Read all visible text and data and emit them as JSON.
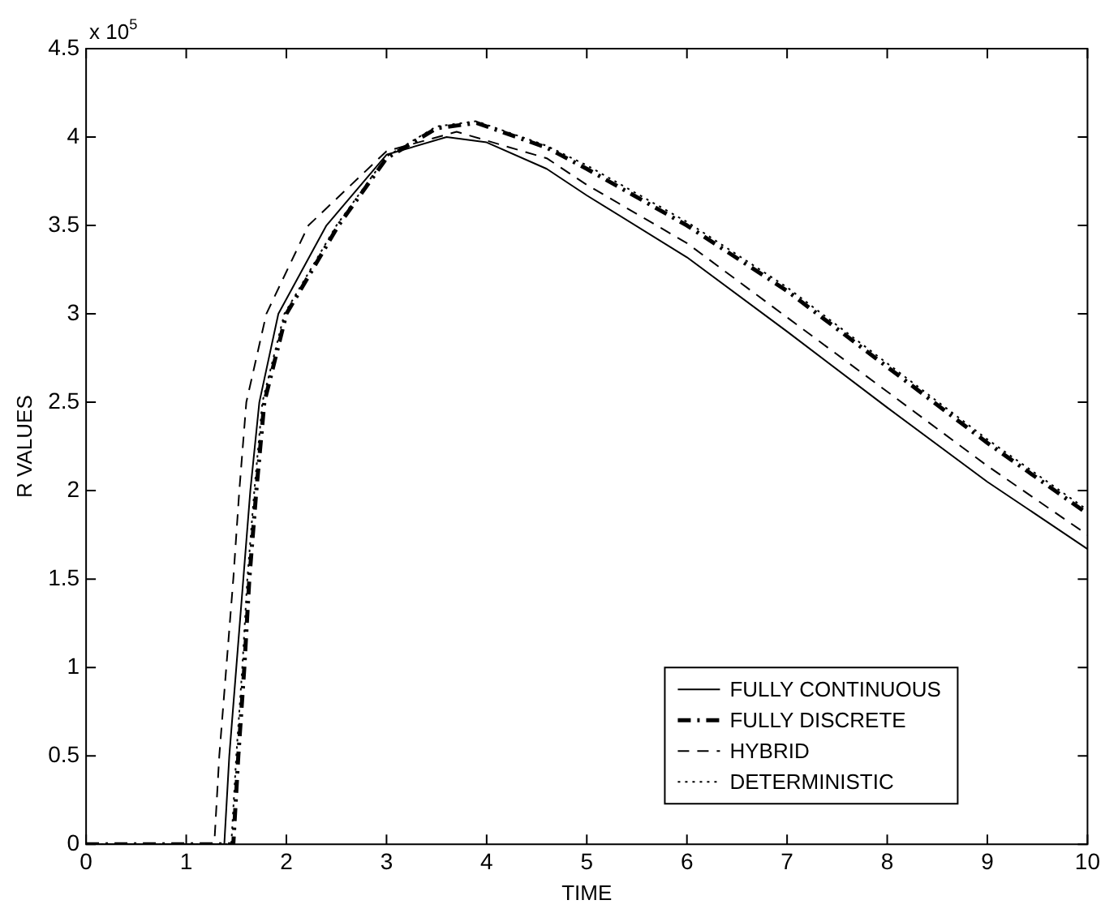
{
  "chart_data": {
    "type": "line",
    "xlabel": "TIME",
    "ylabel": "R VALUES",
    "annotations": [
      "x 10$^{5}$"
    ],
    "xlim": [
      0,
      10
    ],
    "xticks": [
      0,
      1,
      2,
      3,
      4,
      5,
      6,
      7,
      8,
      9,
      10
    ],
    "ylim": [
      0,
      4.5
    ],
    "yticks": [
      0,
      0.5,
      1,
      1.5,
      2,
      2.5,
      3,
      3.5,
      4,
      4.5
    ],
    "legend": "bottom right",
    "marker": "none",
    "series": [
      {
        "name": "FULLY CONTINUOUS",
        "color": "#000000",
        "line_style": "solid",
        "x": [
          0,
          1.38,
          1.43,
          1.5,
          1.57,
          1.64,
          1.73,
          1.92,
          2.4,
          3,
          3.6,
          4,
          4.6,
          5,
          6,
          7,
          8,
          9,
          10
        ],
        "values": [
          0,
          0,
          0.5,
          1,
          1.5,
          2,
          2.5,
          3,
          3.5,
          3.9,
          4,
          3.97,
          3.82,
          3.67,
          3.32,
          2.9,
          2.47,
          2.05,
          1.67
        ]
      },
      {
        "name": "FULLY DISCRETE",
        "color": "#000000",
        "line_style": "dashdot",
        "x": [
          0,
          1.47,
          1.52,
          1.58,
          1.63,
          1.7,
          1.78,
          2,
          2.52,
          3,
          3.5,
          3.9,
          4.6,
          5,
          6,
          7,
          8,
          9,
          10
        ],
        "values": [
          0,
          0,
          0.5,
          1,
          1.5,
          2,
          2.5,
          3,
          3.5,
          3.88,
          4.05,
          4.08,
          3.94,
          3.82,
          3.5,
          3.13,
          2.7,
          2.27,
          1.87
        ]
      },
      {
        "name": "HYBRID",
        "color": "#000000",
        "line_style": "dashed",
        "x": [
          0,
          1.28,
          1.33,
          1.4,
          1.47,
          1.53,
          1.6,
          1.8,
          2.22,
          3,
          3.7,
          4.6,
          5,
          6,
          7,
          8,
          9,
          10
        ],
        "values": [
          0,
          0,
          0.5,
          1,
          1.5,
          2,
          2.5,
          3,
          3.5,
          3.92,
          4.03,
          3.88,
          3.73,
          3.4,
          2.98,
          2.56,
          2.14,
          1.75
        ]
      },
      {
        "name": "DETERMINISTIC",
        "color": "#000000",
        "line_style": "dotted",
        "x": [
          0,
          1.45,
          1.5,
          1.56,
          1.61,
          1.68,
          1.76,
          1.98,
          2.5,
          3,
          3.5,
          3.9,
          4.6,
          5,
          6,
          7,
          8,
          9,
          10
        ],
        "values": [
          0,
          0,
          0.5,
          1,
          1.5,
          2,
          2.5,
          3,
          3.5,
          3.89,
          4.06,
          4.09,
          3.95,
          3.84,
          3.52,
          3.15,
          2.72,
          2.29,
          1.89
        ]
      }
    ]
  }
}
